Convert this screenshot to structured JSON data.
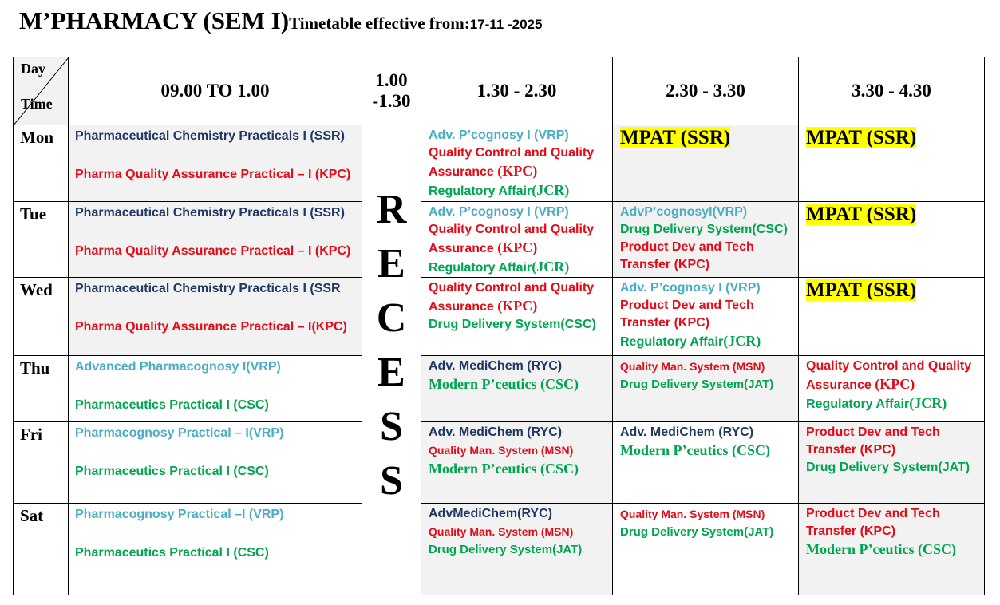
{
  "title": {
    "main": "M’PHARMACY (SEM I)",
    "effective": "Timetable effective from:",
    "date": "17-11 -2025"
  },
  "header": {
    "day": "Day",
    "time": "Time",
    "slots": [
      [
        "09.00 TO 1.00"
      ],
      [
        "1.00",
        "-1.30"
      ],
      [
        "1.30 - 2.30"
      ],
      [
        "2.30 - 3.30"
      ],
      [
        "3.30 - 4.30"
      ]
    ]
  },
  "recess": [
    "R",
    "E",
    "C",
    "E",
    "S",
    "S"
  ],
  "rows": [
    {
      "day": "Mon",
      "cells": [
        {
          "shaded": true,
          "lines": [
            [
              {
                "text": "Pharmaceutical Chemistry Practicals I (SSR)",
                "style": "navy"
              }
            ],
            [
              {
                "text": "Pharma Quality Assurance Practical – I (KPC)",
                "style": "red"
              }
            ]
          ]
        },
        {
          "shaded": false,
          "lines": [
            [
              {
                "text": "Adv. P’cognosy I (VRP)",
                "style": "teal"
              }
            ],
            [
              {
                "text": "Quality Control and Quality",
                "style": "red"
              }
            ],
            [
              {
                "text": "Assurance ",
                "style": "red"
              },
              {
                "text": "(KPC)",
                "style": "red-serif"
              }
            ],
            [
              {
                "text": "Regulatory Affair",
                "style": "green"
              },
              {
                "text": "(JCR)",
                "style": "green-serif"
              }
            ]
          ]
        },
        {
          "shaded": true,
          "lines": [
            [
              {
                "text": "MPAT (SSR)",
                "style": "mpat"
              }
            ]
          ]
        },
        {
          "shaded": false,
          "lines": [
            [
              {
                "text": "MPAT (SSR)",
                "style": "mpat"
              }
            ]
          ]
        }
      ]
    },
    {
      "day": "Tue",
      "cells": [
        {
          "shaded": true,
          "lines": [
            [
              {
                "text": "Pharmaceutical Chemistry Practicals I (SSR)",
                "style": "navy"
              }
            ],
            [
              {
                "text": "Pharma Quality Assurance Practical – I (KPC)",
                "style": "red"
              }
            ]
          ]
        },
        {
          "shaded": false,
          "lines": [
            [
              {
                "text": "Adv. P’cognosy I (VRP)",
                "style": "teal"
              }
            ],
            [
              {
                "text": "Quality Control and Quality",
                "style": "red"
              }
            ],
            [
              {
                "text": "Assurance ",
                "style": "red"
              },
              {
                "text": "(KPC)",
                "style": "red-serif"
              }
            ],
            [
              {
                "text": "Regulatory Affair",
                "style": "green"
              },
              {
                "text": "(JCR)",
                "style": "green-serif"
              }
            ]
          ]
        },
        {
          "shaded": true,
          "lines": [
            [
              {
                "text": "AdvP’cognosyI(VRP)",
                "style": "teal"
              }
            ],
            [
              {
                "text": "Drug Delivery System(CSC)",
                "style": "green"
              }
            ],
            [
              {
                "text": "Product Dev and Tech",
                "style": "red"
              }
            ],
            [
              {
                "text": "Transfer (KPC)",
                "style": "red"
              }
            ]
          ]
        },
        {
          "shaded": false,
          "lines": [
            [
              {
                "text": "MPAT (SSR)",
                "style": "mpat"
              }
            ]
          ]
        }
      ]
    },
    {
      "day": "Wed",
      "cells": [
        {
          "shaded": true,
          "lines": [
            [
              {
                "text": "Pharmaceutical Chemistry Practicals I (SSR",
                "style": "navy"
              }
            ],
            [
              {
                "text": "Pharma Quality Assurance Practical – I(KPC)",
                "style": "red"
              }
            ]
          ]
        },
        {
          "shaded": false,
          "lines": [
            [
              {
                "text": "Quality Control and Quality",
                "style": "red"
              }
            ],
            [
              {
                "text": "Assurance ",
                "style": "red"
              },
              {
                "text": "(KPC)",
                "style": "red-serif"
              }
            ],
            [
              {
                "text": "Drug Delivery System(CSC)",
                "style": "green"
              }
            ]
          ]
        },
        {
          "shaded": false,
          "lines": [
            [
              {
                "text": "Adv. P’cognosy I (VRP)",
                "style": "teal"
              }
            ],
            [
              {
                "text": "Product Dev and Tech",
                "style": "red"
              }
            ],
            [
              {
                "text": "Transfer (KPC)",
                "style": "red"
              }
            ],
            [
              {
                "text": "Regulatory Affair",
                "style": "green"
              },
              {
                "text": "(JCR)",
                "style": "green-serif"
              }
            ]
          ]
        },
        {
          "shaded": false,
          "lines": [
            [
              {
                "text": "MPAT (SSR)",
                "style": "mpat"
              }
            ]
          ]
        }
      ]
    },
    {
      "day": "Thu",
      "cells": [
        {
          "shaded": false,
          "lines": [
            [
              {
                "text": "Advanced Pharmacognosy I(VRP)",
                "style": "teal"
              }
            ],
            [
              {
                "text": "Pharmaceutics Practical I (CSC)",
                "style": "green"
              }
            ]
          ]
        },
        {
          "shaded": true,
          "lines": [
            [
              {
                "text": "Adv. MediChem  (RYC)",
                "style": "navy"
              }
            ],
            [
              {
                "text": "Modern P’ceutics (CSC)",
                "style": "green-serif"
              }
            ]
          ]
        },
        {
          "shaded": true,
          "lines": [
            [
              {
                "text": "Quality Man. System (MSN)",
                "style": "red-small"
              }
            ],
            [
              {
                "text": "Drug Delivery System(JAT)",
                "style": "green-small"
              }
            ]
          ]
        },
        {
          "shaded": false,
          "lines": [
            [
              {
                "text": "Quality Control and Quality",
                "style": "red"
              }
            ],
            [
              {
                "text": "Assurance ",
                "style": "red"
              },
              {
                "text": "(KPC)",
                "style": "red-serif"
              }
            ],
            [
              {
                "text": "Regulatory Affair",
                "style": "green"
              },
              {
                "text": "(JCR)",
                "style": "green-serif"
              }
            ]
          ]
        }
      ]
    },
    {
      "day": "Fri",
      "cells": [
        {
          "shaded": false,
          "lines": [
            [
              {
                "text": "Pharmacognosy Practical – I(VRP)",
                "style": "teal"
              }
            ],
            [
              {
                "text": "Pharmaceutics Practical I (CSC)",
                "style": "green"
              }
            ]
          ]
        },
        {
          "shaded": true,
          "lines": [
            [
              {
                "text": "Adv. MediChem  (RYC)",
                "style": "navy"
              }
            ],
            [
              {
                "text": "Quality Man. System (MSN)",
                "style": "red-small"
              }
            ],
            [
              {
                "text": "Modern P’ceutics (CSC)",
                "style": "green-serif"
              }
            ]
          ]
        },
        {
          "shaded": false,
          "lines": [
            [
              {
                "text": "Adv. MediChem (RYC)",
                "style": "navy"
              }
            ],
            [
              {
                "text": "Modern P’ceutics (CSC)",
                "style": "green-serif"
              }
            ]
          ]
        },
        {
          "shaded": true,
          "lines": [
            [
              {
                "text": "Product Dev and Tech",
                "style": "red"
              }
            ],
            [
              {
                "text": "Transfer (KPC)",
                "style": "red"
              }
            ],
            [
              {
                "text": "Drug Delivery System(JAT)",
                "style": "green"
              }
            ]
          ]
        }
      ]
    },
    {
      "day": "Sat",
      "cells": [
        {
          "shaded": false,
          "lines": [
            [
              {
                "text": "Pharmacognosy Practical –I (VRP)",
                "style": "teal"
              }
            ],
            [
              {
                "text": "Pharmaceutics Practical I (CSC)",
                "style": "green"
              }
            ]
          ]
        },
        {
          "shaded": true,
          "lines": [
            [
              {
                "text": "AdvMediChem(RYC)",
                "style": "navy"
              }
            ],
            [
              {
                "text": "Quality Man. System (MSN)",
                "style": "red-small"
              }
            ],
            [
              {
                "text": "Drug Delivery System(JAT)",
                "style": "green-small"
              }
            ]
          ]
        },
        {
          "shaded": false,
          "lines": [
            [
              {
                "text": "Quality Man. System (MSN)",
                "style": "red-small"
              }
            ],
            [
              {
                "text": "Drug Delivery System(JAT)",
                "style": "green-small"
              }
            ]
          ]
        },
        {
          "shaded": true,
          "lines": [
            [
              {
                "text": "Product Dev and Tech",
                "style": "red"
              }
            ],
            [
              {
                "text": "Transfer (KPC)",
                "style": "red"
              }
            ],
            [
              {
                "text": "Modern P’ceutics (CSC)",
                "style": "green-serif"
              }
            ]
          ]
        }
      ]
    }
  ]
}
